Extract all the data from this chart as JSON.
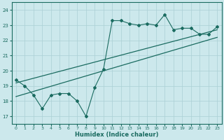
{
  "xlabel": "Humidex (Indice chaleur)",
  "background_color": "#cce8ec",
  "grid_color": "#aacfd4",
  "line_color": "#1a6b60",
  "xlim": [
    -0.5,
    23.5
  ],
  "ylim": [
    16.5,
    24.5
  ],
  "yticks": [
    17,
    18,
    19,
    20,
    21,
    22,
    23,
    24
  ],
  "xticks": [
    0,
    1,
    2,
    3,
    4,
    5,
    6,
    7,
    8,
    9,
    10,
    11,
    12,
    13,
    14,
    15,
    16,
    17,
    18,
    19,
    20,
    21,
    22,
    23
  ],
  "scatter_x": [
    0,
    1,
    2,
    3,
    4,
    5,
    6,
    7,
    8,
    9,
    10,
    11,
    12,
    13,
    14,
    15,
    16,
    17,
    18,
    19,
    20,
    21,
    22,
    23
  ],
  "scatter_y": [
    19.4,
    19.0,
    18.4,
    17.5,
    18.4,
    18.5,
    18.5,
    18.0,
    17.0,
    18.9,
    20.1,
    23.3,
    23.3,
    23.1,
    23.0,
    23.1,
    23.0,
    23.7,
    22.7,
    22.8,
    22.8,
    22.4,
    22.4,
    22.9
  ],
  "line1_x": [
    0,
    23
  ],
  "line1_y": [
    18.3,
    22.2
  ],
  "line2_x": [
    0,
    23
  ],
  "line2_y": [
    19.2,
    22.7
  ]
}
